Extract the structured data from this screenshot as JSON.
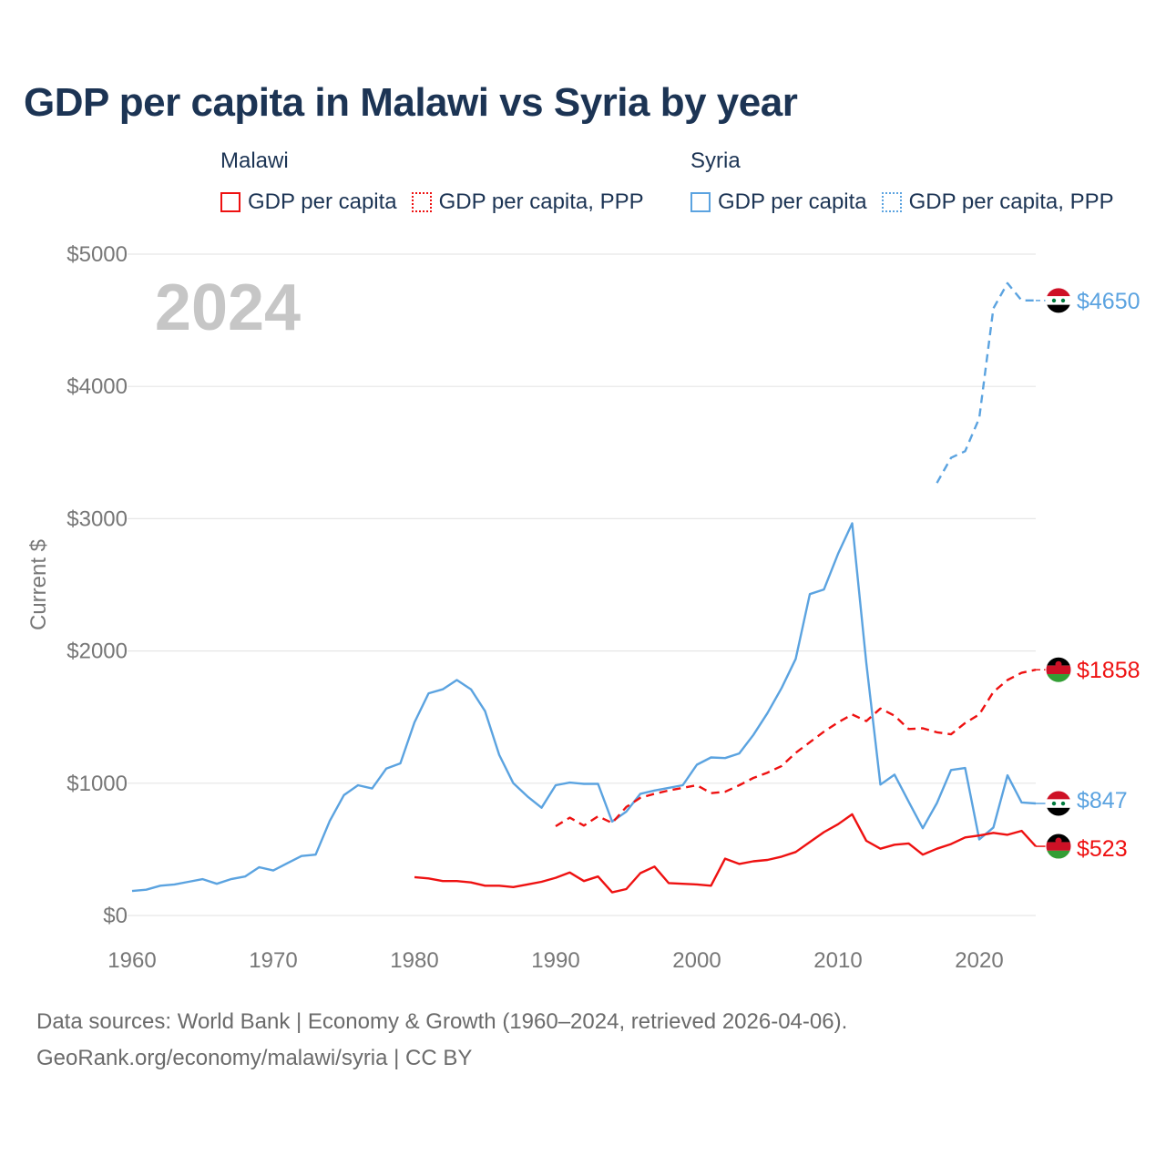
{
  "title": "GDP per capita in Malawi vs Syria by year",
  "legend": {
    "malawi": {
      "country": "Malawi",
      "items": [
        {
          "label": "GDP per capita",
          "style": "solid"
        },
        {
          "label": "GDP per capita, PPP",
          "style": "dotted"
        }
      ]
    },
    "syria": {
      "country": "Syria",
      "items": [
        {
          "label": "GDP per capita",
          "style": "solid"
        },
        {
          "label": "GDP per capita, PPP",
          "style": "dotted"
        }
      ]
    }
  },
  "colors": {
    "malawi": "#ee1111",
    "syria": "#5ba3e0",
    "grid": "#e6e6e6",
    "axis_text": "#777777",
    "year_watermark": "#c6c6c6"
  },
  "chart_data": {
    "type": "line",
    "ylabel": "Current $",
    "xlabel": "",
    "xlim": [
      1960,
      2024
    ],
    "ylim": [
      0,
      5000
    ],
    "x_ticks": [
      1960,
      1970,
      1980,
      1990,
      2000,
      2010,
      2020
    ],
    "y_ticks": [
      0,
      1000,
      2000,
      3000,
      4000,
      5000
    ],
    "y_tick_labels": [
      "$0",
      "$1000",
      "$2000",
      "$3000",
      "$4000",
      "$5000"
    ],
    "current_year": "2024",
    "series": [
      {
        "name": "Syria GDP per capita",
        "country": "Syria",
        "style": "solid",
        "color": "#5ba3e0",
        "x": [
          1960,
          1961,
          1962,
          1963,
          1964,
          1965,
          1966,
          1967,
          1968,
          1969,
          1970,
          1971,
          1972,
          1973,
          1974,
          1975,
          1976,
          1977,
          1978,
          1979,
          1980,
          1981,
          1982,
          1983,
          1984,
          1985,
          1986,
          1987,
          1988,
          1989,
          1990,
          1991,
          1992,
          1993,
          1994,
          1995,
          1996,
          1997,
          1998,
          1999,
          2000,
          2001,
          2002,
          2003,
          2004,
          2005,
          2006,
          2007,
          2008,
          2009,
          2010,
          2011,
          2012,
          2013,
          2014,
          2015,
          2016,
          2017,
          2018,
          2019,
          2020,
          2021,
          2022,
          2023,
          2024
        ],
        "values": [
          185,
          195,
          225,
          235,
          255,
          275,
          240,
          275,
          295,
          365,
          340,
          395,
          450,
          460,
          715,
          910,
          985,
          960,
          1110,
          1150,
          1460,
          1680,
          1710,
          1780,
          1710,
          1545,
          1215,
          1000,
          900,
          815,
          985,
          1005,
          995,
          995,
          710,
          785,
          920,
          945,
          965,
          985,
          1140,
          1195,
          1190,
          1225,
          1365,
          1530,
          1720,
          1940,
          2430,
          2465,
          2735,
          2965,
          1910,
          990,
          1065,
          860,
          660,
          850,
          1100,
          1115,
          575,
          665,
          1060,
          855,
          847
        ],
        "end_label": "$847"
      },
      {
        "name": "Syria GDP per capita, PPP",
        "country": "Syria",
        "style": "dashed",
        "color": "#5ba3e0",
        "x": [
          2017,
          2018,
          2019,
          2020,
          2021,
          2022,
          2023,
          2024
        ],
        "values": [
          3270,
          3460,
          3510,
          3760,
          4590,
          4780,
          4650,
          4650
        ],
        "end_label": "$4650"
      },
      {
        "name": "Malawi GDP per capita",
        "country": "Malawi",
        "style": "solid",
        "color": "#ee1111",
        "x": [
          1980,
          1981,
          1982,
          1983,
          1984,
          1985,
          1986,
          1987,
          1988,
          1989,
          1990,
          1991,
          1992,
          1993,
          1994,
          1995,
          1996,
          1997,
          1998,
          1999,
          2000,
          2001,
          2002,
          2003,
          2004,
          2005,
          2006,
          2007,
          2008,
          2009,
          2010,
          2011,
          2012,
          2013,
          2014,
          2015,
          2016,
          2017,
          2018,
          2019,
          2020,
          2021,
          2022,
          2023,
          2024
        ],
        "values": [
          290,
          280,
          260,
          260,
          250,
          225,
          225,
          215,
          235,
          255,
          285,
          325,
          260,
          295,
          175,
          200,
          320,
          370,
          245,
          240,
          235,
          225,
          430,
          390,
          410,
          420,
          445,
          480,
          555,
          630,
          690,
          765,
          565,
          505,
          535,
          545,
          460,
          505,
          540,
          590,
          605,
          625,
          610,
          640,
          523
        ],
        "end_label": "$523"
      },
      {
        "name": "Malawi GDP per capita, PPP",
        "country": "Malawi",
        "style": "dashed",
        "color": "#ee1111",
        "x": [
          1990,
          1991,
          1992,
          1993,
          1994,
          1995,
          1996,
          1997,
          1998,
          1999,
          2000,
          2001,
          2002,
          2003,
          2004,
          2005,
          2006,
          2007,
          2008,
          2009,
          2010,
          2011,
          2012,
          2013,
          2014,
          2015,
          2016,
          2017,
          2018,
          2019,
          2020,
          2021,
          2022,
          2023,
          2024
        ],
        "values": [
          675,
          740,
          680,
          750,
          700,
          820,
          890,
          920,
          945,
          965,
          985,
          925,
          935,
          985,
          1040,
          1080,
          1130,
          1230,
          1310,
          1390,
          1460,
          1520,
          1470,
          1565,
          1510,
          1410,
          1415,
          1385,
          1370,
          1455,
          1520,
          1690,
          1780,
          1835,
          1858
        ],
        "end_label": "$1858"
      }
    ]
  },
  "source": {
    "line1": "Data sources: World Bank | Economy & Growth (1960–2024, retrieved 2026-04-06).",
    "line2": "GeoRank.org/economy/malawi/syria | CC BY"
  }
}
